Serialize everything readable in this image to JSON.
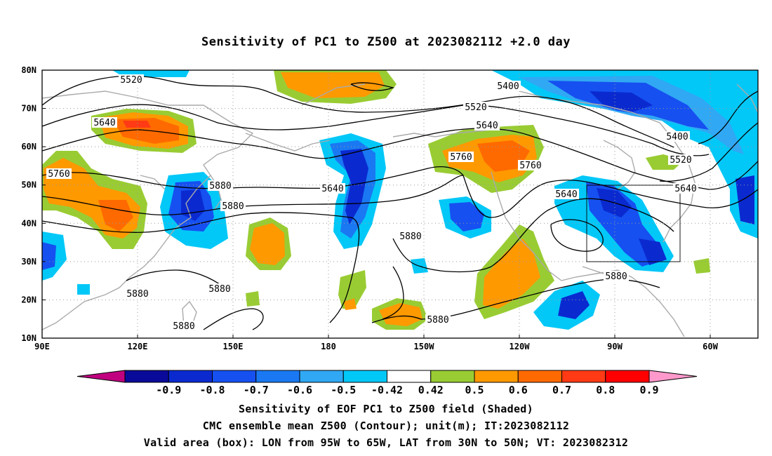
{
  "title": "Sensitivity of PC1 to Z500 at 2023082112 +2.0 day",
  "lat_labels": [
    "80N",
    "70N",
    "60N",
    "50N",
    "40N",
    "30N",
    "20N",
    "10N"
  ],
  "lon_labels": [
    "90E",
    "120E",
    "150E",
    "180",
    "150W",
    "120W",
    "90W",
    "60W"
  ],
  "contour_labels": [
    "5520",
    "5400",
    "5520",
    "5640",
    "5640",
    "5760",
    "5760",
    "5760",
    "5880",
    "5640",
    "5880",
    "5640",
    "5400",
    "5520",
    "5640",
    "5880",
    "5880",
    "5880",
    "5880",
    "5880",
    "5880"
  ],
  "colorbar": {
    "colors": [
      "#c0007f",
      "#0a0a9a",
      "#0a2ad0",
      "#1650f0",
      "#1a78f2",
      "#30a8f4",
      "#02c8f8",
      "#ffffff",
      "#99cc33",
      "#ff9900",
      "#ff6a00",
      "#ff3a14",
      "#ff0000",
      "#ff99cc"
    ],
    "labels": [
      "-0.9",
      "-0.8",
      "-0.7",
      "-0.6",
      "-0.5",
      "-0.42",
      "0.42",
      "0.5",
      "0.6",
      "0.7",
      "0.8",
      "0.9"
    ]
  },
  "captions": [
    "Sensitivity of EOF PC1 to Z500 field (Shaded)",
    "CMC ensemble mean Z500 (Contour); unit(m); IT:2023082112",
    "Valid area (box): LON from 95W to 65W, LAT from 30N to 50N; VT: 2023082312"
  ]
}
